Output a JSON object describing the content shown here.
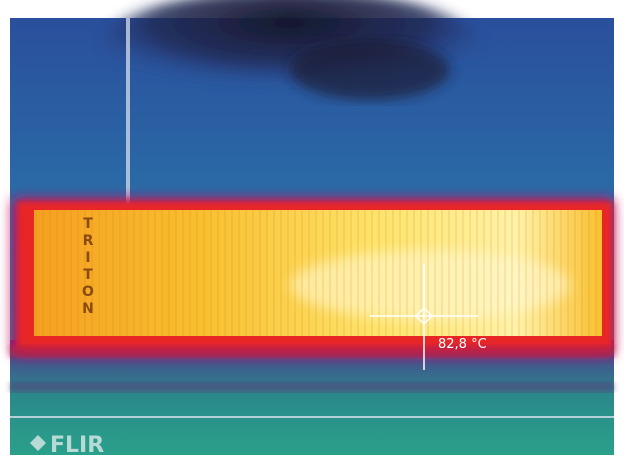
{
  "image": {
    "container_text": "TRITON",
    "measurement": "82,8 °C",
    "logo": "FLIR"
  }
}
